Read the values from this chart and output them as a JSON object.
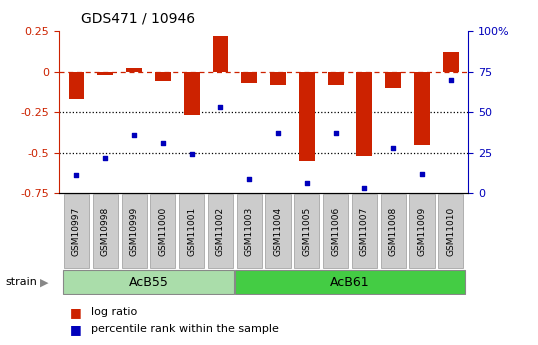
{
  "title": "GDS471 / 10946",
  "samples": [
    "GSM10997",
    "GSM10998",
    "GSM10999",
    "GSM11000",
    "GSM11001",
    "GSM11002",
    "GSM11003",
    "GSM11004",
    "GSM11005",
    "GSM11006",
    "GSM11007",
    "GSM11008",
    "GSM11009",
    "GSM11010"
  ],
  "log_ratio": [
    -0.17,
    -0.02,
    0.02,
    -0.06,
    -0.27,
    0.22,
    -0.07,
    -0.08,
    -0.55,
    -0.08,
    -0.52,
    -0.1,
    -0.45,
    0.12
  ],
  "percentile_rank": [
    11,
    22,
    36,
    31,
    24,
    53,
    9,
    37,
    6,
    37,
    3,
    28,
    12,
    70
  ],
  "groups": [
    {
      "name": "AcB55",
      "start": 0,
      "end": 5,
      "color": "#AADDAA"
    },
    {
      "name": "AcB61",
      "start": 6,
      "end": 13,
      "color": "#44CC44"
    }
  ],
  "bar_color": "#CC2200",
  "dot_color": "#0000BB",
  "dashed_line_color": "#CC2200",
  "dotted_line_color": "#000000",
  "ylim_left": [
    -0.75,
    0.25
  ],
  "ylim_right": [
    0,
    100
  ],
  "yticks_left": [
    -0.75,
    -0.5,
    -0.25,
    0.0,
    0.25
  ],
  "ytick_labels_left": [
    "-0.75",
    "-0.5",
    "-0.25",
    "0",
    "0.25"
  ],
  "yticks_right": [
    0,
    25,
    50,
    75,
    100
  ],
  "ytick_labels_right": [
    "0",
    "25",
    "50",
    "75",
    "100%"
  ],
  "left_axis_color": "#CC2200",
  "right_axis_color": "#0000BB",
  "strain_label": "strain",
  "legend_bar": "log ratio",
  "legend_dot": "percentile rank within the sample",
  "hline_dashed": 0.0,
  "hline_dotted1": -0.25,
  "hline_dotted2": -0.5,
  "bar_width": 0.55,
  "sample_box_color": "#CCCCCC",
  "sample_box_edge": "#999999"
}
